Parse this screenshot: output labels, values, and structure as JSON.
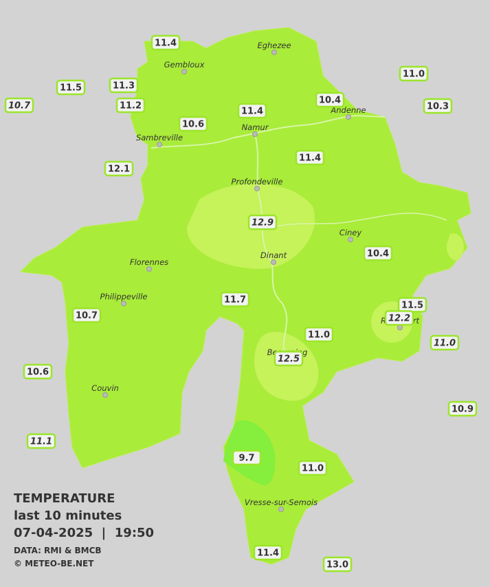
{
  "readings": [
    "11.4",
    "11.5",
    "11.3",
    "10.7",
    "11.2",
    "10.6",
    "11.4",
    "10.4",
    "11.0",
    "10.3",
    "12.1",
    "11.4",
    "12.9",
    "10.4",
    "11.7",
    "10.7",
    "11.5",
    "12.2",
    "11.0",
    "11.0",
    "12.5",
    "10.6",
    "10.9",
    "11.1",
    "9.7",
    "11.0",
    "11.4",
    "13.0"
  ],
  "towns": [
    "Eghezee",
    "Gembloux",
    "Andenne",
    "Namur",
    "Sambreville",
    "Profondeville",
    "Ciney",
    "Dinant",
    "Florennes",
    "Philippeville",
    "Rochefort",
    "Beauraing",
    "Couvin",
    "Vresse-sur-Semois"
  ],
  "legend": {
    "title": "TEMPERATURE",
    "subtitle": "last 10 minutes",
    "datetime": "07-04-2025  |  19:50",
    "source": "DATA: RMI & BMCB",
    "copyright": "© METEO-BE.NET"
  }
}
